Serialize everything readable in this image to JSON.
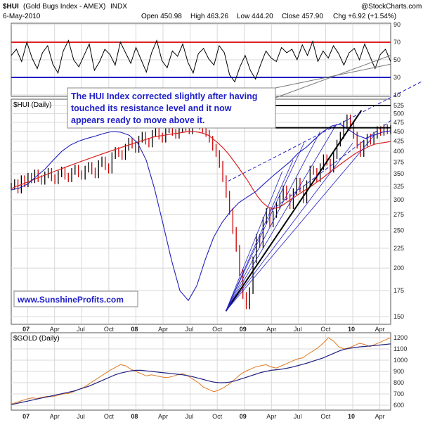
{
  "header": {
    "symbol": "$HUI",
    "name": "(Gold Bugs Index - AMEX)",
    "exchange": "INDX",
    "date": "6-May-2010",
    "open": "Open 450.98",
    "high": "High 463.26",
    "low": "Low 444.20",
    "close": "Close 457.90",
    "chg": "Chg +6.92 (+1.54%)",
    "watermark": "@StockCharts.com"
  },
  "annotation": {
    "line1": "The HUI Index corrected slightly after having",
    "line2": "touched its resistance level and it now",
    "line3": "appears ready to move above it."
  },
  "website": "www.SunshineProfits.com",
  "colors": {
    "price_bar": "#000000",
    "down_bar": "#cc0000",
    "ma_short": "#2020c0",
    "ma_long": "#dd2222",
    "rsi_line": "#000000",
    "rsi_upper": "#dd2222",
    "rsi_lower": "#2020c0",
    "gold_line": "#e07820",
    "gold_ma": "#202080",
    "callout_text": "#2020c8"
  },
  "chart_data": [
    {
      "type": "line",
      "panel": "rsi",
      "ylim": [
        10,
        90
      ],
      "yticks": [
        90,
        70,
        50,
        30,
        10
      ],
      "levels": [
        70,
        30
      ],
      "x_start": 2006.85,
      "x_end": 2010.35,
      "values": [
        55,
        62,
        48,
        70,
        52,
        40,
        58,
        66,
        45,
        35,
        60,
        72,
        50,
        42,
        55,
        68,
        38,
        48,
        62,
        56,
        44,
        70,
        58,
        46,
        64,
        50,
        36,
        58,
        72,
        49,
        41,
        60,
        54,
        68,
        47,
        35,
        57,
        63,
        51,
        44,
        66,
        58,
        33,
        25,
        42,
        55,
        38,
        28,
        45,
        60,
        52,
        48,
        64,
        58,
        62,
        50,
        67,
        55,
        71,
        48,
        60,
        52,
        66,
        57,
        44,
        58,
        63,
        50,
        68,
        54,
        40,
        56,
        62,
        48
      ]
    },
    {
      "type": "line",
      "panel": "price",
      "title": "$HUI (Daily)",
      "ylim": [
        150,
        525
      ],
      "yticks": [
        525,
        500,
        475,
        450,
        425,
        400,
        375,
        350,
        325,
        300,
        275,
        250,
        225,
        200,
        175,
        150
      ],
      "log_scale": true,
      "x_start": 2006.85,
      "x_end": 2010.35,
      "xticks": [
        "07",
        "Apr",
        "Jul",
        "Oct",
        "08",
        "Apr",
        "Jul",
        "Oct",
        "09",
        "Apr",
        "Jul",
        "Oct",
        "10",
        "Apr"
      ],
      "xtick_pos": [
        2007.0,
        2007.25,
        2007.5,
        2007.75,
        2008.0,
        2008.25,
        2008.5,
        2008.75,
        2009.0,
        2009.25,
        2009.5,
        2009.75,
        2010.0,
        2010.25
      ],
      "series": [
        {
          "values": [
            325,
            332,
            318,
            340,
            330,
            345,
            338,
            352,
            340,
            335,
            348,
            355,
            342,
            336,
            350,
            358,
            345,
            340,
            355,
            362,
            350,
            345,
            360,
            368,
            356,
            348,
            372,
            380,
            365,
            358,
            390,
            402,
            395,
            388,
            410,
            425,
            415,
            405,
            430,
            440,
            425,
            418,
            445,
            452,
            438,
            430,
            455,
            462,
            448,
            440,
            458,
            472,
            460,
            452,
            468,
            478,
            465,
            456,
            445,
            430,
            410,
            395,
            370,
            340,
            310,
            280,
            250,
            225,
            195,
            170,
            160,
            175,
            210,
            240,
            230,
            265,
            280,
            260,
            275,
            290,
            305,
            320,
            305,
            290,
            315,
            335,
            320,
            300,
            330,
            360,
            355,
            340,
            365,
            385,
            375,
            360,
            390,
            420,
            440,
            470,
            488,
            465,
            440,
            415,
            395,
            420,
            435,
            425,
            440,
            455,
            448,
            460,
            452,
            458
          ]
        },
        {
          "name": "",
          "values": [
            320,
            325,
            328,
            332,
            336,
            340,
            344,
            348,
            352,
            356,
            360,
            364,
            368,
            372,
            376,
            380,
            384,
            388,
            392,
            396,
            400,
            404,
            408,
            412,
            416,
            420,
            424,
            428,
            432,
            436,
            438,
            440,
            442,
            444,
            446,
            448,
            450,
            450,
            448,
            445,
            440,
            430,
            420,
            408,
            395,
            380,
            365,
            350,
            336,
            320,
            306,
            295,
            288,
            285,
            286,
            290,
            296,
            302,
            308,
            314,
            320,
            326,
            333,
            340,
            348,
            356,
            364,
            372,
            380,
            388,
            396,
            402,
            408,
            414,
            418,
            420,
            422,
            424
          ]
        },
        {
          "name": "",
          "values": [
            318,
            322,
            330,
            345,
            360,
            380,
            400,
            415,
            425,
            432,
            438,
            445,
            450,
            448,
            440,
            420,
            380,
            320,
            260,
            210,
            175,
            165,
            180,
            210,
            240,
            262,
            280,
            295,
            305,
            315,
            330,
            345,
            360,
            375,
            395,
            410,
            430,
            450,
            465,
            470,
            455,
            440,
            432,
            440,
            448,
            452
          ]
        }
      ]
    },
    {
      "type": "line",
      "panel": "gold",
      "title": "$GOLD (Daily)",
      "ylim": [
        600,
        1200
      ],
      "yticks": [
        1200,
        1100,
        1000,
        900,
        800,
        700,
        600
      ],
      "x_start": 2006.85,
      "x_end": 2010.35,
      "series": [
        {
          "values": [
            610,
            625,
            640,
            655,
            665,
            660,
            670,
            680,
            675,
            690,
            700,
            705,
            720,
            740,
            760,
            790,
            820,
            850,
            880,
            910,
            935,
            960,
            950,
            920,
            900,
            880,
            860,
            870,
            860,
            850,
            845,
            855,
            870,
            880,
            860,
            830,
            800,
            760,
            740,
            720,
            735,
            760,
            790,
            830,
            870,
            900,
            920,
            940,
            950,
            960,
            940,
            930,
            950,
            970,
            990,
            1010,
            1020,
            1050,
            1080,
            1110,
            1150,
            1200,
            1170,
            1120,
            1100,
            1110,
            1130,
            1150,
            1140,
            1120,
            1140,
            1160,
            1180,
            1200
          ]
        },
        {
          "name": "",
          "values": [
            605,
            615,
            625,
            635,
            645,
            655,
            665,
            675,
            685,
            695,
            705,
            715,
            725,
            740,
            755,
            770,
            790,
            810,
            830,
            850,
            870,
            885,
            895,
            905,
            910,
            910,
            905,
            900,
            895,
            890,
            885,
            880,
            875,
            870,
            862,
            852,
            840,
            828,
            815,
            805,
            800,
            800,
            805,
            815,
            830,
            845,
            860,
            875,
            890,
            900,
            910,
            915,
            920,
            928,
            938,
            950,
            962,
            975,
            990,
            1005,
            1020,
            1040,
            1060,
            1080,
            1095,
            1105,
            1112,
            1118,
            1122,
            1126,
            1130,
            1135,
            1140,
            1145
          ]
        }
      ]
    }
  ]
}
